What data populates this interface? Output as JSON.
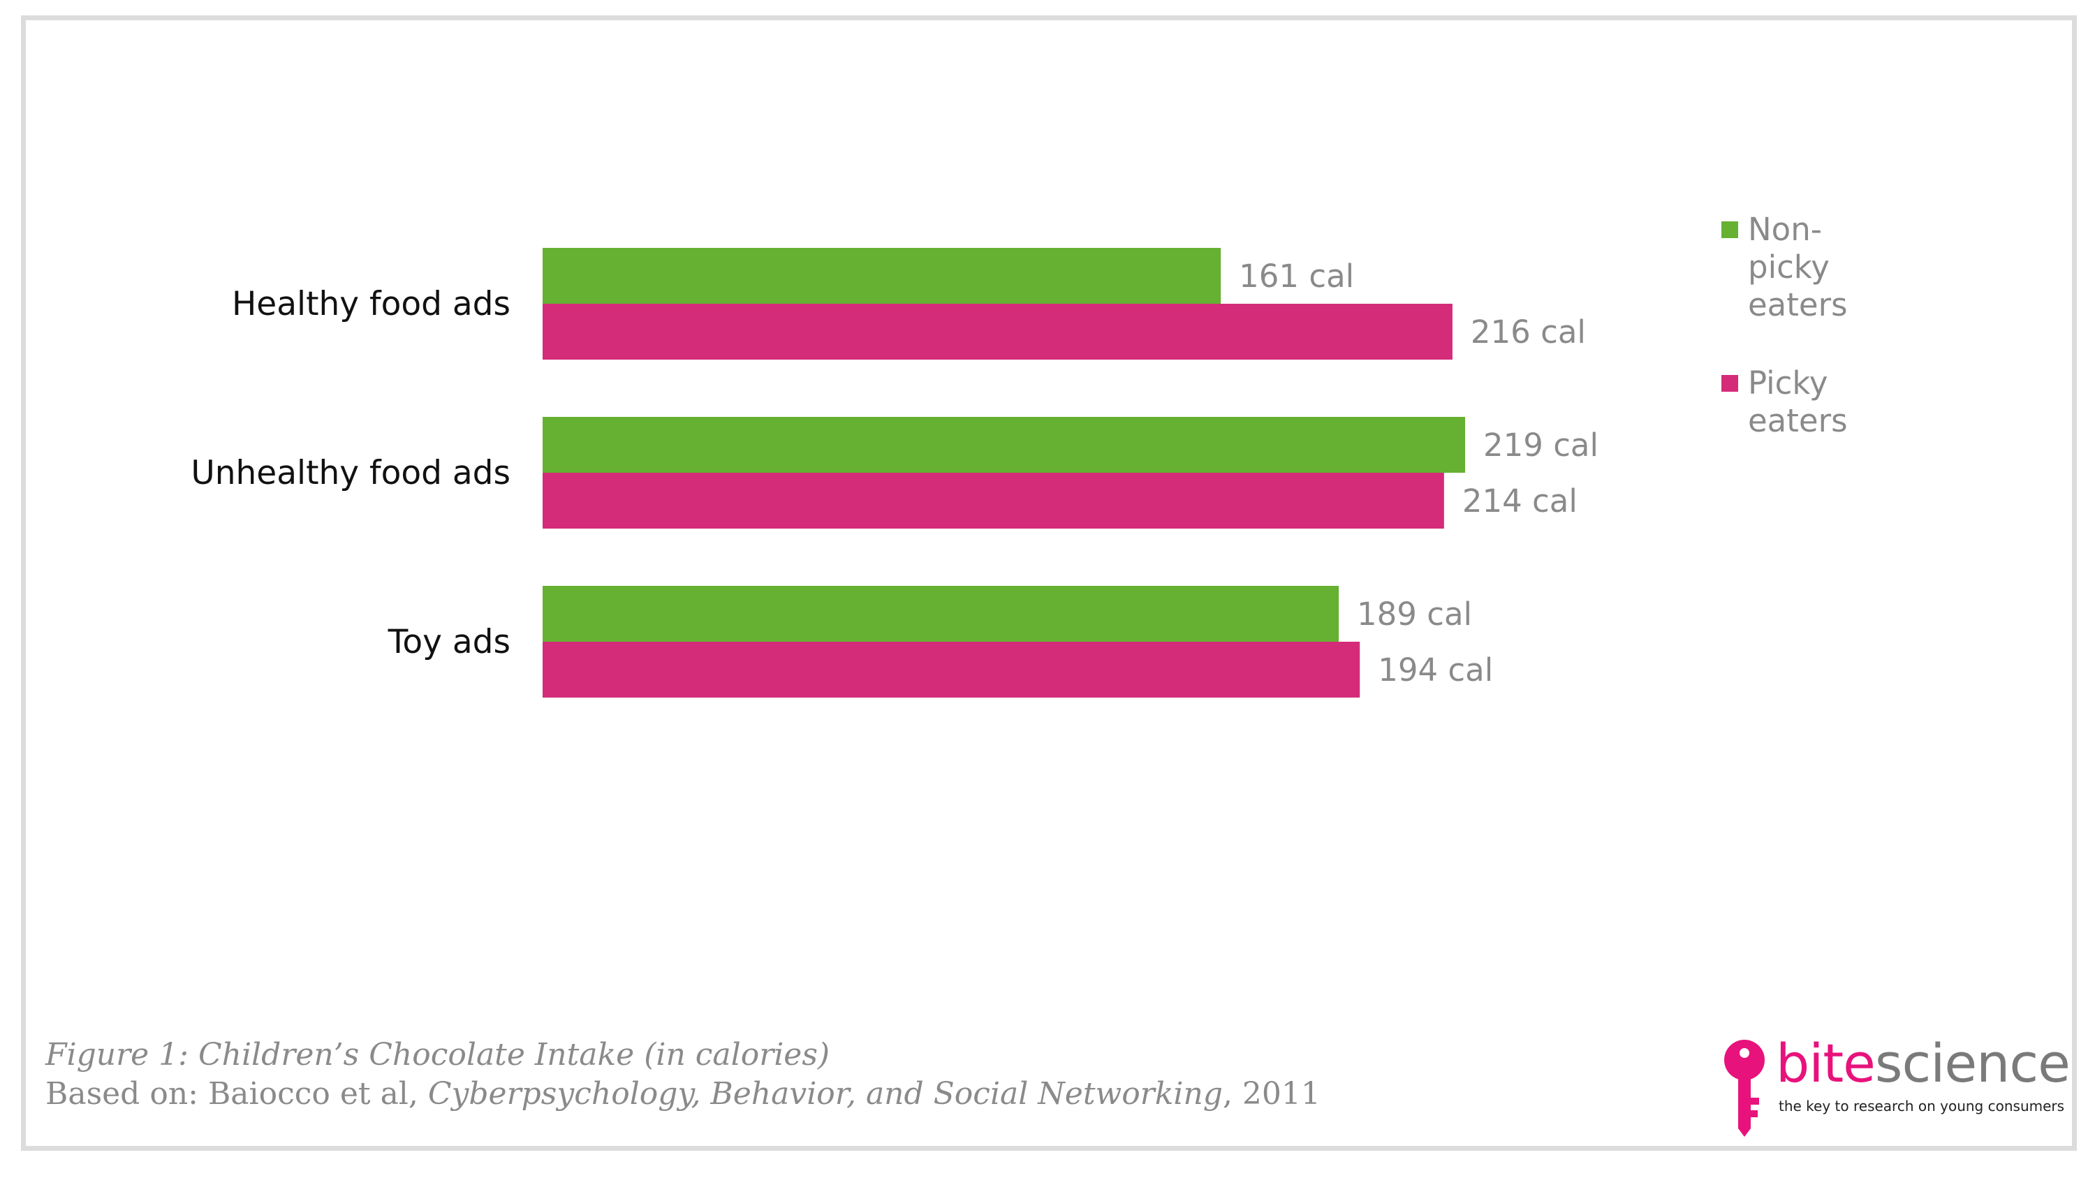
{
  "chart_data": {
    "type": "bar",
    "orientation": "horizontal",
    "categories": [
      "Healthy food ads",
      "Unhealthy food ads",
      "Toy ads"
    ],
    "series": [
      {
        "name": "Non-picky eaters",
        "values": [
          161,
          219,
          189
        ],
        "labels": [
          "161 cal",
          "219 cal",
          "189 cal"
        ],
        "color": "#66b032"
      },
      {
        "name": "Picky eaters",
        "values": [
          216,
          214,
          194
        ],
        "labels": [
          "216 cal",
          "214 cal",
          "194 cal"
        ],
        "color": "#d42c79"
      }
    ],
    "xlim": [
      0,
      250
    ],
    "grid": false,
    "legend_position": "top-right"
  },
  "legend": {
    "items": [
      {
        "lines": [
          "Non-picky",
          "eaters"
        ],
        "color": "#66b032"
      },
      {
        "lines": [
          "Picky",
          "eaters"
        ],
        "color": "#d42c79"
      }
    ]
  },
  "caption": {
    "title": "Figure 1: Children’s Chocolate Intake (in calories)",
    "source_prefix": "Based on: Baiocco et al, ",
    "source_journal": "Cyberpsychology, Behavior, and Social Networking",
    "source_suffix": ", 2011"
  },
  "logo": {
    "word_part1": "bite",
    "word_part2": "science",
    "tagline": "the key to research on young consumers",
    "color_part1": "#e8127c",
    "color_part2": "#7a7a7a"
  }
}
